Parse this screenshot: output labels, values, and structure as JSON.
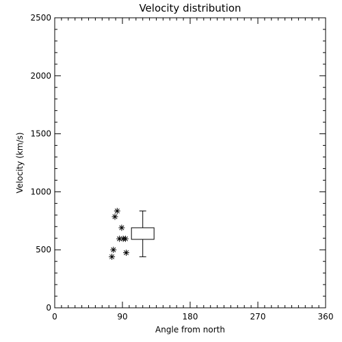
{
  "chart_data": {
    "type": "scatter",
    "title": "Velocity distribution",
    "xlabel": "Angle from north",
    "ylabel": "Velocity (km/s)",
    "xlim": [
      0,
      360
    ],
    "ylim": [
      0,
      2500
    ],
    "xticks": [
      0,
      90,
      180,
      270,
      360
    ],
    "xtick_labels": [
      "0",
      "90",
      "180",
      "270",
      "360"
    ],
    "yticks": [
      0,
      500,
      1000,
      1500,
      2000,
      2500
    ],
    "ytick_labels": [
      "0",
      "500",
      "1000",
      "1500",
      "2000",
      "2500"
    ],
    "grid": false,
    "points": [
      {
        "x": 83,
        "y": 835
      },
      {
        "x": 80,
        "y": 785
      },
      {
        "x": 89,
        "y": 690
      },
      {
        "x": 86,
        "y": 595
      },
      {
        "x": 91,
        "y": 595
      },
      {
        "x": 94,
        "y": 595
      },
      {
        "x": 78,
        "y": 500
      },
      {
        "x": 95,
        "y": 475
      },
      {
        "x": 76,
        "y": 440
      }
    ],
    "boxplot": {
      "x_left": 102,
      "x_right": 132,
      "x_center": 117,
      "whisker_low": 440,
      "q1": 590,
      "q3": 690,
      "whisker_high": 835
    }
  }
}
